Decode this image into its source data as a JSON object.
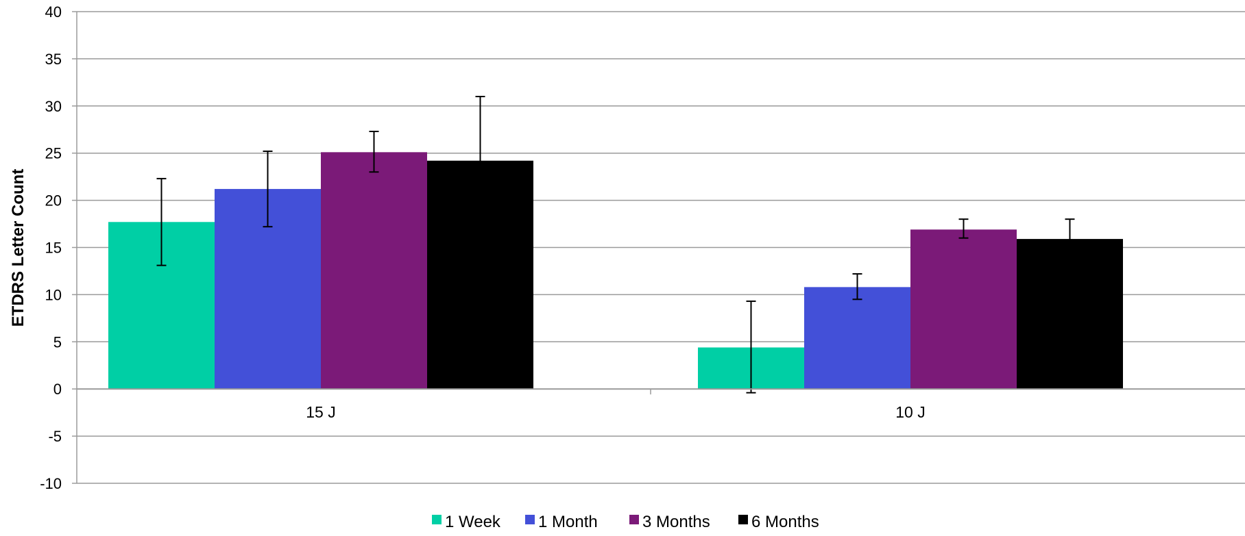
{
  "chart_data": {
    "type": "bar",
    "title": "",
    "xlabel": "",
    "ylabel": "ETDRS Letter Count",
    "ylim": [
      -10,
      40
    ],
    "ytick_step": 5,
    "yticks": [
      "40",
      "35",
      "30",
      "25",
      "20",
      "15",
      "10",
      "5",
      "0",
      "-5",
      "-10"
    ],
    "grid": true,
    "legend_position": "bottom-center",
    "categories": [
      "15 J",
      "10 J"
    ],
    "series": [
      {
        "name": "1 Week",
        "color": "#00cfa5",
        "values": [
          17.7,
          4.4
        ],
        "error_low": [
          13.1,
          -0.4
        ],
        "error_high": [
          22.3,
          9.3
        ]
      },
      {
        "name": "1 Month",
        "color": "#4350d8",
        "values": [
          21.2,
          10.8
        ],
        "error_low": [
          17.2,
          9.5
        ],
        "error_high": [
          25.2,
          12.2
        ]
      },
      {
        "name": "3 Months",
        "color": "#7b1a78",
        "values": [
          25.1,
          16.9
        ],
        "error_low": [
          23.0,
          16.0
        ],
        "error_high": [
          27.3,
          18.0
        ]
      },
      {
        "name": "6 Months",
        "color": "#000000",
        "values": [
          24.2,
          15.9
        ],
        "error_low": [
          17.4,
          13.8
        ],
        "error_high": [
          31.0,
          18.0
        ]
      }
    ]
  }
}
